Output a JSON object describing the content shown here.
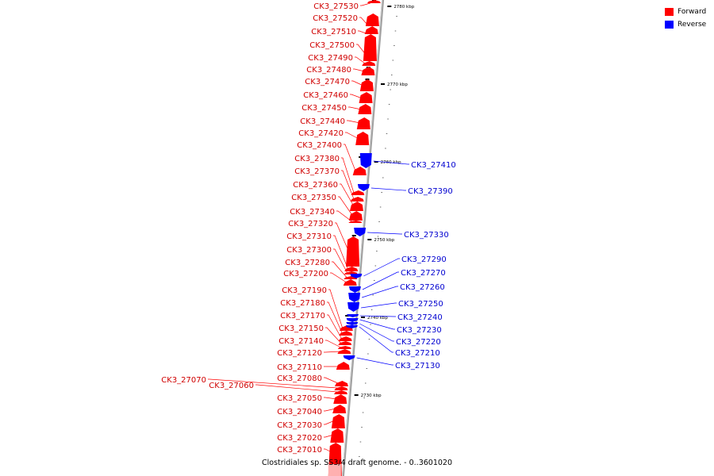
{
  "legend": {
    "forward": {
      "label": "Forward",
      "color": "#ff0000"
    },
    "reverse": {
      "label": "Reverse",
      "color": "#0000ff"
    }
  },
  "caption": "Clostridiales sp. SS3/4 draft genome. - 0..3601020",
  "axis_color": "#a0a0a0",
  "scale_ticks": [
    {
      "label": "2780 kbp",
      "kbp": 2780
    },
    {
      "label": "2770 kbp",
      "kbp": 2770
    },
    {
      "label": "2760 kbp",
      "kbp": 2760
    },
    {
      "label": "2750 kbp",
      "kbp": 2750
    },
    {
      "label": "2740 kbp",
      "kbp": 2740
    },
    {
      "label": "2730 kbp",
      "kbp": 2730
    }
  ],
  "genes_forward": [
    "CK3_27530",
    "CK3_27520",
    "CK3_27510",
    "CK3_27500",
    "CK3_27490",
    "CK3_27480",
    "CK3_27470",
    "CK3_27460",
    "CK3_27450",
    "CK3_27440",
    "CK3_27420",
    "CK3_27400",
    "CK3_27380",
    "CK3_27370",
    "CK3_27360",
    "CK3_27350",
    "CK3_27340",
    "CK3_27320",
    "CK3_27310",
    "CK3_27300",
    "CK3_27280",
    "CK3_27200",
    "CK3_27190",
    "CK3_27180",
    "CK3_27170",
    "CK3_27150",
    "CK3_27140",
    "CK3_27120",
    "CK3_27110",
    "CK3_27080",
    "CK3_27070",
    "CK3_27060",
    "CK3_27050",
    "CK3_27040",
    "CK3_27030",
    "CK3_27020",
    "CK3_27010"
  ],
  "genes_reverse": [
    "CK3_27410",
    "CK3_27390",
    "CK3_27330",
    "CK3_27290",
    "CK3_27270",
    "CK3_27260",
    "CK3_27250",
    "CK3_27240",
    "CK3_27230",
    "CK3_27220",
    "CK3_27210",
    "CK3_27130"
  ]
}
